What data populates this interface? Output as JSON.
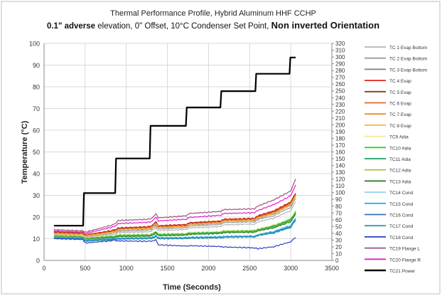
{
  "chart_data": {
    "type": "line",
    "title_line1": "Thermal Performance Profile, Hybrid Aluminum HHF CCHP",
    "title_line2": {
      "part1": "0.1\" adverse",
      "part2": " elevation, 0\" Offset,  10°C Condenser Set Point, ",
      "part3": "Non inverted Orientation"
    },
    "xlabel": "Time (Seconds)",
    "ylabel": "Temperature (°C)",
    "xlim": [
      0,
      3500
    ],
    "ylim": [
      0,
      100
    ],
    "y2lim": [
      0,
      320
    ],
    "x_ticks": [
      "0",
      "500",
      "1000",
      "1500",
      "2000",
      "2500",
      "3000",
      "3500"
    ],
    "y_ticks": [
      "0",
      "10",
      "20",
      "30",
      "40",
      "50",
      "60",
      "70",
      "80",
      "90",
      "100"
    ],
    "y2_ticks": [
      "0",
      "10",
      "20",
      "30",
      "40",
      "50",
      "60",
      "70",
      "80",
      "90",
      "100",
      "110",
      "120",
      "130",
      "140",
      "150",
      "160",
      "170",
      "180",
      "190",
      "200",
      "210",
      "220",
      "230",
      "240",
      "250",
      "260",
      "270",
      "280",
      "290",
      "300",
      "310",
      "320"
    ],
    "grid": true,
    "legend_position": "right",
    "series": [
      {
        "name": "TC 1 Evap Bottom",
        "color": "#b3b3b3",
        "axis": "left",
        "x": [
          120,
          470,
          500,
          860,
          900,
          1290,
          1320,
          1360,
          1390,
          1730,
          1760,
          2150,
          2180,
          2560,
          2600,
          2800,
          3000,
          3060
        ],
        "y": [
          11.8,
          11.4,
          10.6,
          12.0,
          12.8,
          13.2,
          14.0,
          15.0,
          13.8,
          14.2,
          15.0,
          15.6,
          16.4,
          16.8,
          17.8,
          19.6,
          23.0,
          27.0
        ]
      },
      {
        "name": "TC 2 Evap Bottom",
        "color": "#9a9a9a",
        "axis": "left",
        "x": [
          120,
          470,
          500,
          860,
          900,
          1290,
          1320,
          1360,
          1390,
          1730,
          1760,
          2150,
          2180,
          2560,
          2600,
          2800,
          3000,
          3060
        ],
        "y": [
          12.2,
          11.8,
          11.0,
          12.6,
          13.4,
          14.0,
          14.8,
          16.0,
          14.6,
          15.0,
          15.8,
          16.6,
          17.4,
          17.8,
          18.8,
          20.8,
          24.5,
          28.5
        ]
      },
      {
        "name": "TC 3 Evap Bottom",
        "color": "#7f7f7f",
        "axis": "left",
        "x": [
          120,
          470,
          500,
          860,
          900,
          1290,
          1320,
          1360,
          1390,
          1730,
          1760,
          2150,
          2180,
          2560,
          2600,
          2800,
          3000,
          3060
        ],
        "y": [
          12.6,
          12.2,
          11.4,
          13.2,
          14.0,
          14.6,
          15.4,
          16.8,
          15.2,
          15.6,
          16.4,
          17.2,
          18.0,
          18.4,
          19.4,
          21.6,
          25.5,
          29.5
        ]
      },
      {
        "name": "TC 4 Evap",
        "color": "#e2261b",
        "axis": "left",
        "x": [
          120,
          470,
          500,
          860,
          900,
          1290,
          1320,
          1360,
          1390,
          1730,
          1760,
          2150,
          2180,
          2560,
          2600,
          2800,
          3000,
          3060
        ],
        "y": [
          13.2,
          12.6,
          11.8,
          14.0,
          15.0,
          15.6,
          16.4,
          18.0,
          16.0,
          16.6,
          17.4,
          18.2,
          19.0,
          19.4,
          20.6,
          23.0,
          27.0,
          31.0
        ]
      },
      {
        "name": "TC 5 Evap",
        "color": "#8b3a1c",
        "axis": "left",
        "x": [
          120,
          470,
          500,
          860,
          900,
          1290,
          1320,
          1360,
          1390,
          1730,
          1760,
          2150,
          2180,
          2560,
          2600,
          2800,
          3000,
          3060
        ],
        "y": [
          12.9,
          12.4,
          11.6,
          13.7,
          14.7,
          15.3,
          16.1,
          17.6,
          15.7,
          16.3,
          17.1,
          17.9,
          18.7,
          19.1,
          20.2,
          22.6,
          26.6,
          30.6
        ]
      },
      {
        "name": "TC 6 Evap",
        "color": "#e5652b",
        "axis": "left",
        "x": [
          120,
          470,
          500,
          860,
          900,
          1290,
          1320,
          1360,
          1390,
          1730,
          1760,
          2150,
          2180,
          2560,
          2600,
          2800,
          3000,
          3060
        ],
        "y": [
          12.7,
          12.2,
          11.5,
          13.5,
          14.5,
          15.1,
          15.9,
          17.4,
          15.5,
          16.1,
          16.9,
          17.7,
          18.5,
          18.9,
          20.0,
          22.3,
          26.3,
          30.3
        ]
      },
      {
        "name": "TC 7 Evap",
        "color": "#f08a24",
        "axis": "left",
        "x": [
          120,
          470,
          500,
          860,
          900,
          1290,
          1320,
          1360,
          1390,
          1730,
          1760,
          2150,
          2180,
          2560,
          2600,
          2800,
          3000,
          3060
        ],
        "y": [
          12.5,
          12.0,
          11.3,
          13.3,
          14.3,
          14.9,
          15.7,
          17.2,
          15.3,
          15.9,
          16.7,
          17.5,
          18.3,
          18.7,
          19.8,
          22.0,
          26.0,
          30.0
        ]
      },
      {
        "name": "TC 8 Evap",
        "color": "#f5b34a",
        "axis": "left",
        "x": [
          120,
          470,
          500,
          860,
          900,
          1290,
          1320,
          1360,
          1390,
          1730,
          1760,
          2150,
          2180,
          2560,
          2600,
          2800,
          3000,
          3060
        ],
        "y": [
          12.3,
          11.8,
          11.1,
          13.1,
          14.1,
          14.7,
          15.5,
          17.0,
          15.1,
          15.7,
          16.5,
          17.3,
          18.1,
          18.5,
          19.6,
          21.7,
          25.6,
          29.6
        ]
      },
      {
        "name": "TC9 Adia",
        "color": "#f3e9a0",
        "axis": "left",
        "x": [
          120,
          470,
          500,
          860,
          900,
          1290,
          1320,
          1360,
          1390,
          1730,
          1760,
          2150,
          2180,
          2560,
          2600,
          2800,
          3000,
          3060
        ],
        "y": [
          11.6,
          11.2,
          10.4,
          11.6,
          12.0,
          12.2,
          12.6,
          13.6,
          12.4,
          12.6,
          13.0,
          13.4,
          13.8,
          14.0,
          14.6,
          16.4,
          19.4,
          23.0
        ]
      },
      {
        "name": "TC10 Adia",
        "color": "#2fd12f",
        "axis": "left",
        "x": [
          120,
          470,
          500,
          860,
          900,
          1290,
          1320,
          1360,
          1390,
          1730,
          1760,
          2150,
          2180,
          2560,
          2600,
          2800,
          3000,
          3060
        ],
        "y": [
          11.4,
          11.0,
          10.2,
          11.2,
          11.6,
          11.8,
          12.2,
          13.2,
          12.0,
          12.2,
          12.6,
          13.0,
          13.4,
          13.6,
          14.2,
          16.0,
          19.0,
          22.6
        ]
      },
      {
        "name": "TC11 Adia",
        "color": "#1a9b6a",
        "axis": "left",
        "x": [
          120,
          470,
          500,
          860,
          900,
          1290,
          1320,
          1360,
          1390,
          1730,
          1760,
          2150,
          2180,
          2560,
          2600,
          2800,
          3000,
          3060
        ],
        "y": [
          11.2,
          10.8,
          10.0,
          11.0,
          11.4,
          11.6,
          12.0,
          13.0,
          11.8,
          12.0,
          12.4,
          12.8,
          13.2,
          13.4,
          14.0,
          15.7,
          18.6,
          22.2
        ]
      },
      {
        "name": "TC12 Adia",
        "color": "#a7c742",
        "axis": "left",
        "x": [
          120,
          470,
          500,
          860,
          900,
          1290,
          1320,
          1360,
          1390,
          1730,
          1760,
          2150,
          2180,
          2560,
          2600,
          2800,
          3000,
          3060
        ],
        "y": [
          11.0,
          10.6,
          9.8,
          10.8,
          11.2,
          11.4,
          11.8,
          12.8,
          11.6,
          11.8,
          12.2,
          12.6,
          13.0,
          13.2,
          13.8,
          15.4,
          18.2,
          21.8
        ]
      },
      {
        "name": "TC13 Adia",
        "color": "#1f7a1f",
        "axis": "left",
        "x": [
          120,
          470,
          500,
          860,
          900,
          1290,
          1320,
          1360,
          1390,
          1730,
          1760,
          2150,
          2180,
          2560,
          2600,
          2800,
          3000,
          3060
        ],
        "y": [
          10.8,
          10.4,
          9.6,
          10.6,
          11.0,
          11.2,
          11.6,
          12.6,
          11.4,
          11.6,
          12.0,
          12.4,
          12.8,
          13.0,
          13.6,
          15.1,
          17.9,
          21.4
        ]
      },
      {
        "name": "TC14 Cond",
        "color": "#8fd3f0",
        "axis": "left",
        "x": [
          120,
          470,
          500,
          860,
          900,
          1290,
          1320,
          1360,
          1390,
          1730,
          1760,
          2150,
          2180,
          2560,
          2600,
          2800,
          3000,
          3060
        ],
        "y": [
          10.6,
          10.2,
          9.4,
          10.2,
          10.4,
          10.6,
          10.8,
          11.6,
          10.6,
          10.6,
          10.8,
          11.0,
          11.2,
          11.4,
          12.0,
          13.6,
          16.4,
          19.6
        ]
      },
      {
        "name": "TC15 Cond",
        "color": "#1fb6e8",
        "axis": "left",
        "x": [
          120,
          470,
          500,
          860,
          900,
          1290,
          1320,
          1360,
          1390,
          1730,
          1760,
          2150,
          2180,
          2560,
          2600,
          2800,
          3000,
          3060
        ],
        "y": [
          10.4,
          10.0,
          9.2,
          10.0,
          10.2,
          10.4,
          10.6,
          11.4,
          10.4,
          10.4,
          10.6,
          10.8,
          11.0,
          11.2,
          11.8,
          13.3,
          16.0,
          19.2
        ]
      },
      {
        "name": "TC16 Cond",
        "color": "#3a6fb8",
        "axis": "left",
        "x": [
          120,
          470,
          500,
          860,
          900,
          1290,
          1320,
          1360,
          1390,
          1730,
          1760,
          2150,
          2180,
          2560,
          2600,
          2800,
          3000,
          3060
        ],
        "y": [
          10.2,
          9.8,
          9.0,
          9.8,
          10.0,
          10.2,
          10.4,
          11.2,
          10.2,
          10.2,
          10.4,
          10.6,
          10.8,
          11.0,
          11.6,
          13.0,
          15.6,
          18.8
        ]
      },
      {
        "name": "TC17 Cond",
        "color": "#2a9fa6",
        "axis": "left",
        "x": [
          120,
          470,
          500,
          860,
          900,
          1290,
          1320,
          1360,
          1390,
          1730,
          1760,
          2150,
          2180,
          2560,
          2600,
          2800,
          3000,
          3060
        ],
        "y": [
          10.0,
          9.6,
          8.8,
          9.6,
          9.8,
          10.0,
          10.2,
          11.0,
          10.0,
          10.0,
          10.2,
          10.4,
          10.6,
          10.8,
          11.4,
          12.7,
          15.2,
          18.4
        ]
      },
      {
        "name": "TC18 Cond",
        "color": "#2b3fc8",
        "axis": "left",
        "x": [
          120,
          470,
          500,
          860,
          900,
          1290,
          1320,
          1360,
          1390,
          1730,
          1760,
          2150,
          2180,
          2560,
          2600,
          2800,
          3000,
          3060
        ],
        "y": [
          10.2,
          9.8,
          8.0,
          9.2,
          9.0,
          8.8,
          9.0,
          9.6,
          7.2,
          6.6,
          6.8,
          6.4,
          6.2,
          5.8,
          5.4,
          6.4,
          8.6,
          10.6
        ]
      },
      {
        "name": "TC19 Flange L",
        "color": "#a05080",
        "axis": "left",
        "x": [
          120,
          470,
          500,
          860,
          900,
          1290,
          1320,
          1360,
          1390,
          1730,
          1760,
          2150,
          2180,
          2560,
          2600,
          2800,
          3000,
          3060
        ],
        "y": [
          14.2,
          13.6,
          13.0,
          16.6,
          18.4,
          19.0,
          19.8,
          21.6,
          19.6,
          20.6,
          21.6,
          22.6,
          23.4,
          23.8,
          25.0,
          28.0,
          32.0,
          37.5
        ]
      },
      {
        "name": "TC20 Flange R",
        "color": "#e020c8",
        "axis": "left",
        "x": [
          120,
          470,
          500,
          860,
          900,
          1290,
          1320,
          1360,
          1390,
          1730,
          1760,
          2150,
          2180,
          2560,
          2600,
          2800,
          3000,
          3060
        ],
        "y": [
          13.6,
          13.0,
          12.4,
          15.6,
          17.0,
          17.6,
          18.4,
          20.0,
          18.2,
          19.0,
          19.8,
          20.8,
          21.6,
          22.0,
          23.0,
          25.8,
          29.8,
          34.8
        ]
      },
      {
        "name": "TC21 Power",
        "color": "#000000",
        "axis": "right",
        "x": [
          120,
          475,
          485,
          865,
          875,
          1285,
          1295,
          1725,
          1735,
          2145,
          2155,
          2570,
          2580,
          2985,
          2995,
          3060
        ],
        "y": [
          16,
          16,
          31,
          31,
          47,
          47,
          62,
          62,
          70.5,
          70.5,
          78,
          78,
          86,
          86,
          93.5,
          93.5
        ]
      }
    ]
  }
}
